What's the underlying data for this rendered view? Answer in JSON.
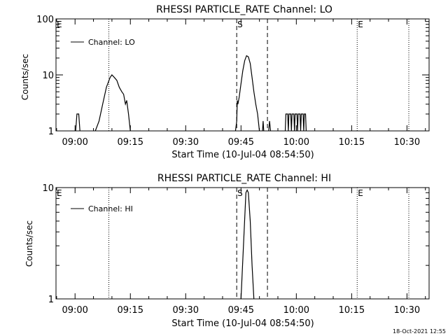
{
  "footer": {
    "timestamp": "18-Oct-2021 12:55"
  },
  "chart_data": [
    {
      "type": "line",
      "title": "RHESSI PARTICLE_RATE Channel: LO",
      "xlabel": "Start Time (10-Jul-04 08:54:50)",
      "ylabel": "Counts/sec",
      "y_scale": "log",
      "ylim": [
        1,
        100
      ],
      "xlim": [
        "08:54:50",
        "10:36:00"
      ],
      "grid": false,
      "legend": {
        "position": "top-left",
        "entries": [
          "Channel: LO"
        ]
      },
      "x_ticks": [
        "09:00",
        "09:15",
        "09:30",
        "09:45",
        "10:00",
        "10:15",
        "10:30"
      ],
      "y_ticks": [
        "1",
        "10",
        "100"
      ],
      "markers": [
        {
          "label": "E",
          "time": "08:54:50",
          "style": "dotted"
        },
        {
          "label": "",
          "time": "09:09:10",
          "style": "dotted"
        },
        {
          "label": "S",
          "time": "09:43:50",
          "style": "dashed"
        },
        {
          "label": "",
          "time": "09:52:10",
          "style": "dashed"
        },
        {
          "label": "E",
          "time": "10:16:30",
          "style": "dotted"
        },
        {
          "label": "",
          "time": "10:30:30",
          "style": "dotted"
        }
      ],
      "series": [
        {
          "name": "Channel: LO",
          "segments": [
            [
              [
                "09:00:10",
                1
              ],
              [
                "09:00:30",
                2
              ],
              [
                "09:01:00",
                2
              ],
              [
                "09:01:20",
                1
              ]
            ],
            [
              [
                "09:05:30",
                1
              ],
              [
                "09:06:30",
                1.5
              ],
              [
                "09:07:30",
                3
              ],
              [
                "09:08:30",
                6
              ],
              [
                "09:09:30",
                9
              ],
              [
                "09:10:00",
                10
              ],
              [
                "09:10:40",
                9
              ],
              [
                "09:11:20",
                8
              ],
              [
                "09:12:00",
                6
              ],
              [
                "09:12:40",
                5
              ],
              [
                "09:13:10",
                4.5
              ],
              [
                "09:13:40",
                3
              ],
              [
                "09:14:00",
                3.5
              ],
              [
                "09:14:30",
                2
              ],
              [
                "09:15:00",
                1
              ]
            ],
            [
              [
                "09:43:30",
                1
              ],
              [
                "09:43:50",
                1.5
              ],
              [
                "09:44:00",
                3.5
              ],
              [
                "09:44:10",
                3
              ],
              [
                "09:44:30",
                4
              ],
              [
                "09:45:00",
                7
              ],
              [
                "09:45:30",
                12
              ],
              [
                "09:46:00",
                18
              ],
              [
                "09:46:30",
                22
              ],
              [
                "09:47:00",
                21
              ],
              [
                "09:47:30",
                16
              ],
              [
                "09:48:00",
                9
              ],
              [
                "09:48:30",
                5
              ],
              [
                "09:49:00",
                3
              ],
              [
                "09:49:30",
                2
              ],
              [
                "09:50:00",
                1
              ]
            ],
            [
              [
                "09:50:50",
                1
              ],
              [
                "09:51:00",
                1.5
              ],
              [
                "09:51:10",
                1
              ]
            ],
            [
              [
                "09:52:30",
                1
              ],
              [
                "09:52:45",
                1.5
              ],
              [
                "09:53:00",
                1
              ]
            ],
            [
              [
                "09:57:00",
                1
              ],
              [
                "09:57:10",
                2
              ],
              [
                "09:57:40",
                2
              ],
              [
                "09:57:50",
                1
              ],
              [
                "09:58:00",
                2
              ],
              [
                "09:58:30",
                2
              ],
              [
                "09:58:40",
                1
              ],
              [
                "09:58:50",
                2
              ],
              [
                "09:59:20",
                2
              ],
              [
                "09:59:30",
                1
              ],
              [
                "09:59:40",
                2
              ],
              [
                "10:00:10",
                2
              ],
              [
                "10:00:20",
                1
              ],
              [
                "10:00:30",
                2
              ],
              [
                "10:01:00",
                2
              ],
              [
                "10:01:10",
                1
              ],
              [
                "10:01:20",
                2
              ],
              [
                "10:01:50",
                2
              ],
              [
                "10:02:00",
                1
              ],
              [
                "10:02:10",
                2
              ],
              [
                "10:02:30",
                2
              ],
              [
                "10:02:40",
                1
              ]
            ]
          ]
        }
      ]
    },
    {
      "type": "line",
      "title": "RHESSI PARTICLE_RATE Channel: HI",
      "xlabel": "Start Time (10-Jul-04 08:54:50)",
      "ylabel": "Counts/sec",
      "y_scale": "log",
      "ylim": [
        1,
        10
      ],
      "xlim": [
        "08:54:50",
        "10:36:00"
      ],
      "grid": false,
      "legend": {
        "position": "top-left",
        "entries": [
          "Channel: HI"
        ]
      },
      "x_ticks": [
        "09:00",
        "09:15",
        "09:30",
        "09:45",
        "10:00",
        "10:15",
        "10:30"
      ],
      "y_ticks": [
        "1",
        "10"
      ],
      "markers": [
        {
          "label": "E",
          "time": "08:54:50",
          "style": "dotted"
        },
        {
          "label": "",
          "time": "09:09:10",
          "style": "dotted"
        },
        {
          "label": "S",
          "time": "09:43:50",
          "style": "dashed"
        },
        {
          "label": "",
          "time": "09:52:10",
          "style": "dashed"
        },
        {
          "label": "E",
          "time": "10:16:30",
          "style": "dotted"
        },
        {
          "label": "",
          "time": "10:30:30",
          "style": "dotted"
        }
      ],
      "series": [
        {
          "name": "Channel: HI",
          "segments": [
            [
              [
                "09:45:00",
                1
              ],
              [
                "09:45:40",
                3
              ],
              [
                "09:46:20",
                9
              ],
              [
                "09:46:40",
                9.5
              ],
              [
                "09:47:00",
                9
              ],
              [
                "09:47:30",
                5
              ],
              [
                "09:48:00",
                2
              ],
              [
                "09:48:30",
                1
              ]
            ]
          ]
        }
      ]
    }
  ]
}
